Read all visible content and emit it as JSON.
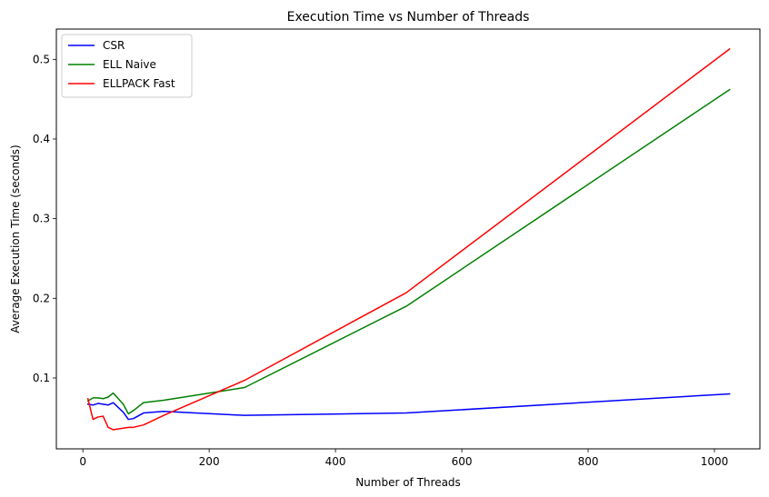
{
  "chart_data": {
    "type": "line",
    "title": "Execution Time vs Number of Threads",
    "xlabel": "Number of Threads",
    "ylabel": "Average Execution Time (seconds)",
    "xlim": [
      -42,
      1072
    ],
    "ylim": [
      0.011,
      0.538
    ],
    "xticks": [
      0,
      200,
      400,
      600,
      800,
      1000
    ],
    "yticks": [
      0.1,
      0.2,
      0.3,
      0.4,
      0.5
    ],
    "xtick_labels": [
      "0",
      "200",
      "400",
      "600",
      "800",
      "1000"
    ],
    "ytick_labels": [
      "0.1",
      "0.2",
      "0.3",
      "0.4",
      "0.5"
    ],
    "grid": false,
    "legend_position": "upper-left",
    "x": [
      8,
      16,
      24,
      32,
      40,
      48,
      56,
      64,
      72,
      80,
      96,
      128,
      256,
      512,
      1024
    ],
    "series": [
      {
        "name": "CSR",
        "color": "#0000ff",
        "values": [
          0.067,
          0.066,
          0.068,
          0.067,
          0.066,
          0.069,
          0.063,
          0.057,
          0.048,
          0.049,
          0.056,
          0.058,
          0.053,
          0.056,
          0.08
        ]
      },
      {
        "name": "ELL Naive",
        "color": "#008000",
        "values": [
          0.071,
          0.075,
          0.075,
          0.074,
          0.076,
          0.081,
          0.074,
          0.067,
          0.055,
          0.059,
          0.069,
          0.072,
          0.088,
          0.19,
          0.462
        ]
      },
      {
        "name": "ELLPACK Fast",
        "color": "#ff0000",
        "values": [
          0.074,
          0.048,
          0.051,
          0.052,
          0.038,
          0.035,
          0.036,
          0.037,
          0.038,
          0.038,
          0.041,
          0.053,
          0.097,
          0.207,
          0.513
        ]
      }
    ]
  }
}
